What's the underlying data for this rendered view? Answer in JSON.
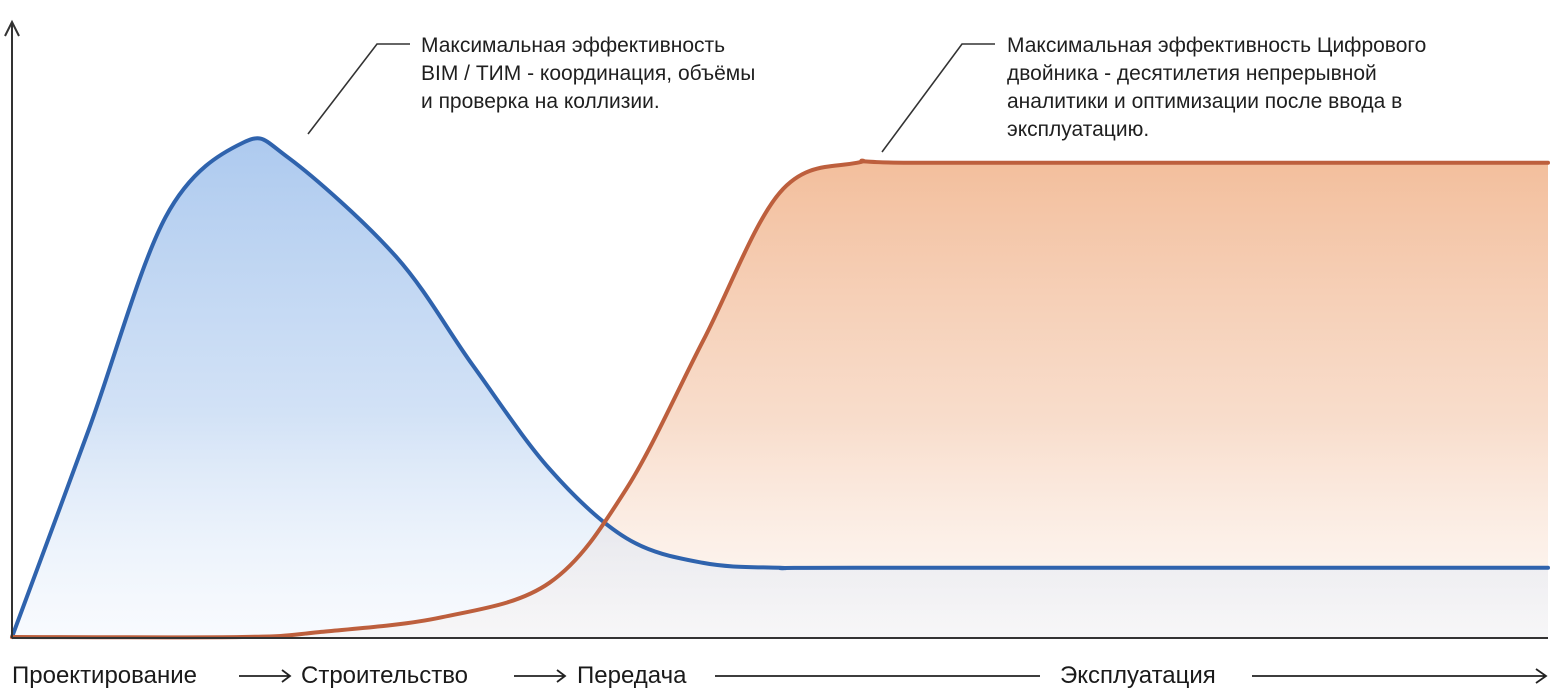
{
  "chart_data": {
    "type": "area",
    "title": "",
    "xlabel": "",
    "ylabel": "",
    "grid": false,
    "legend": "none",
    "x_axis_phases": [
      {
        "label": "Проектирование"
      },
      {
        "label": "Строительство"
      },
      {
        "label": "Передача"
      },
      {
        "label": "Эксплуатация"
      }
    ],
    "series": [
      {
        "color": "#2f63ad",
        "fill_color": "#a9c7ee",
        "x": [
          0,
          0.05,
          0.1,
          0.15,
          0.18,
          0.25,
          0.3,
          0.35,
          0.4,
          0.45,
          0.5,
          0.55,
          1.0
        ],
        "y": [
          0,
          0.42,
          0.85,
          1.0,
          0.97,
          0.77,
          0.55,
          0.34,
          0.2,
          0.15,
          0.14,
          0.14,
          0.14
        ]
      },
      {
        "color": "#bd5f3d",
        "fill_color": "#f2bb97",
        "x": [
          0,
          0.15,
          0.2,
          0.28,
          0.35,
          0.4,
          0.45,
          0.5,
          0.55,
          0.6,
          1.0
        ],
        "y": [
          0,
          0.0,
          0.01,
          0.04,
          0.11,
          0.3,
          0.6,
          0.9,
          0.96,
          0.96,
          0.96
        ]
      }
    ],
    "annotations": [
      {
        "series": 0,
        "lines": [
          "Максимальная эффективность",
          "BIM / ТИМ - координация, объёмы",
          "и проверка на коллизии."
        ]
      },
      {
        "series": 1,
        "lines": [
          "Максимальная эффективность Цифрового",
          "двойника - десятилетия непрерывной",
          "аналитики и оптимизации после ввода в",
          "эксплуатацию."
        ]
      }
    ]
  }
}
